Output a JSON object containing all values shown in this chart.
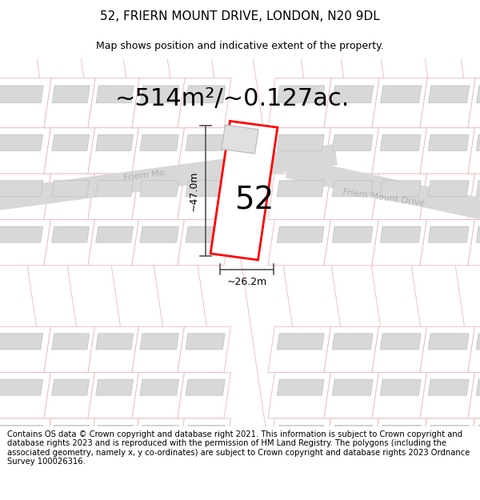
{
  "title": "52, FRIERN MOUNT DRIVE, LONDON, N20 9DL",
  "subtitle": "Map shows position and indicative extent of the property.",
  "area_label": "~514m²/~0.127ac.",
  "property_number": "52",
  "width_label": "~26.2m",
  "height_label": "~47.0m",
  "road_label_main": "Friern Mo...",
  "road_label_right": "Friern Mount Drive",
  "footer_text": "Contains OS data © Crown copyright and database right 2021. This information is subject to Crown copyright and database rights 2023 and is reproduced with the permission of HM Land Registry. The polygons (including the associated geometry, namely x, y co-ordinates) are subject to Crown copyright and database rights 2023 Ordnance Survey 100026316.",
  "bg_color": "#ffffff",
  "road_color": "#d8d8d8",
  "plot_edge_color": "#f0b8b8",
  "plot_fill_color": "#ffffff",
  "building_fill": "#d8d8d8",
  "building_edge": "#c0c0c0",
  "property_edge_color": "#ff0000",
  "property_fill": "#ffffff",
  "road_text_color": "#b0b0b0",
  "dim_color": "#555555",
  "title_fontsize": 11,
  "subtitle_fontsize": 9,
  "area_fontsize": 22,
  "number_fontsize": 28,
  "dim_fontsize": 9,
  "road_fontsize": 8,
  "footer_fontsize": 7.2
}
